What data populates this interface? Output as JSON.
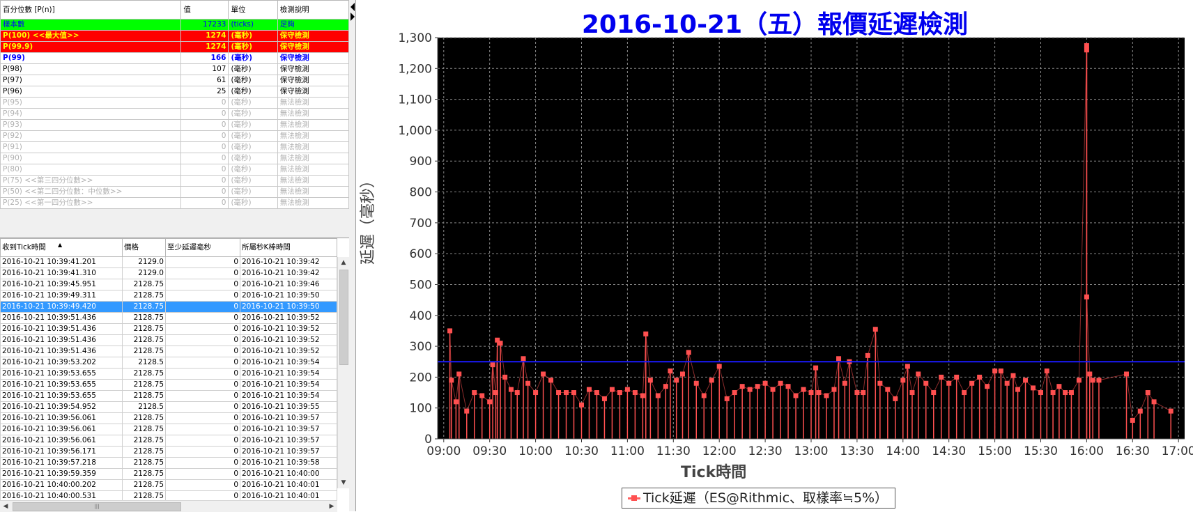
{
  "stats_table": {
    "headers": [
      "百分位數 [P(n)]",
      "值",
      "單位",
      "檢測說明"
    ],
    "rows": [
      {
        "label": "樣本數",
        "value": "17233",
        "unit": "(ticks)",
        "desc": "足夠",
        "style": "green"
      },
      {
        "label": "P(100)  <<最大值>>",
        "value": "1274",
        "unit": "(毫秒)",
        "desc": "保守檢測",
        "style": "red"
      },
      {
        "label": "P(99.9)",
        "value": "1274",
        "unit": "(毫秒)",
        "desc": "保守檢測",
        "style": "red"
      },
      {
        "label": "P(99)",
        "value": "166",
        "unit": "(毫秒)",
        "desc": "保守檢測",
        "style": "blue"
      },
      {
        "label": "P(98)",
        "value": "107",
        "unit": "(毫秒)",
        "desc": "保守檢測",
        "style": "normal"
      },
      {
        "label": "P(97)",
        "value": "61",
        "unit": "(毫秒)",
        "desc": "保守檢測",
        "style": "normal"
      },
      {
        "label": "P(96)",
        "value": "25",
        "unit": "(毫秒)",
        "desc": "保守檢測",
        "style": "normal"
      },
      {
        "label": "P(95)",
        "value": "0",
        "unit": "(毫秒)",
        "desc": "無法檢測",
        "style": "gray"
      },
      {
        "label": "P(94)",
        "value": "0",
        "unit": "(毫秒)",
        "desc": "無法檢測",
        "style": "gray"
      },
      {
        "label": "P(93)",
        "value": "0",
        "unit": "(毫秒)",
        "desc": "無法檢測",
        "style": "gray"
      },
      {
        "label": "P(92)",
        "value": "0",
        "unit": "(毫秒)",
        "desc": "無法檢測",
        "style": "gray"
      },
      {
        "label": "P(91)",
        "value": "0",
        "unit": "(毫秒)",
        "desc": "無法檢測",
        "style": "gray"
      },
      {
        "label": "P(90)",
        "value": "0",
        "unit": "(毫秒)",
        "desc": "無法檢測",
        "style": "gray"
      },
      {
        "label": "P(80)",
        "value": "0",
        "unit": "(毫秒)",
        "desc": "無法檢測",
        "style": "gray"
      },
      {
        "label": "P(75)  <<第三四分位數>>",
        "value": "0",
        "unit": "(毫秒)",
        "desc": "無法檢測",
        "style": "gray"
      },
      {
        "label": "P(50)  <<第二四分位數：中位數>>",
        "value": "0",
        "unit": "(毫秒)",
        "desc": "無法檢測",
        "style": "gray"
      },
      {
        "label": "P(25)  <<第一四分位數>>",
        "value": "0",
        "unit": "(毫秒)",
        "desc": "無法檢測",
        "style": "gray"
      }
    ]
  },
  "tick_table": {
    "headers": [
      "收到Tick時間",
      "價格",
      "至少延遲毫秒",
      "所屬秒K棒時間"
    ],
    "selected_index": 4,
    "rows": [
      [
        "2016-10-21 10:39:41.201",
        "2129.0",
        "0",
        "2016-10-21 10:39:42"
      ],
      [
        "2016-10-21 10:39:41.310",
        "2129.0",
        "0",
        "2016-10-21 10:39:42"
      ],
      [
        "2016-10-21 10:39:45.951",
        "2128.75",
        "0",
        "2016-10-21 10:39:46"
      ],
      [
        "2016-10-21 10:39:49.311",
        "2128.75",
        "0",
        "2016-10-21 10:39:50"
      ],
      [
        "2016-10-21 10:39:49.420",
        "2128.75",
        "0",
        "2016-10-21 10:39:50"
      ],
      [
        "2016-10-21 10:39:51.436",
        "2128.75",
        "0",
        "2016-10-21 10:39:52"
      ],
      [
        "2016-10-21 10:39:51.436",
        "2128.75",
        "0",
        "2016-10-21 10:39:52"
      ],
      [
        "2016-10-21 10:39:51.436",
        "2128.75",
        "0",
        "2016-10-21 10:39:52"
      ],
      [
        "2016-10-21 10:39:51.436",
        "2128.75",
        "0",
        "2016-10-21 10:39:52"
      ],
      [
        "2016-10-21 10:39:53.202",
        "2128.5",
        "0",
        "2016-10-21 10:39:54"
      ],
      [
        "2016-10-21 10:39:53.655",
        "2128.75",
        "0",
        "2016-10-21 10:39:54"
      ],
      [
        "2016-10-21 10:39:53.655",
        "2128.75",
        "0",
        "2016-10-21 10:39:54"
      ],
      [
        "2016-10-21 10:39:53.655",
        "2128.75",
        "0",
        "2016-10-21 10:39:54"
      ],
      [
        "2016-10-21 10:39:54.952",
        "2128.5",
        "0",
        "2016-10-21 10:39:55"
      ],
      [
        "2016-10-21 10:39:56.061",
        "2128.75",
        "0",
        "2016-10-21 10:39:57"
      ],
      [
        "2016-10-21 10:39:56.061",
        "2128.75",
        "0",
        "2016-10-21 10:39:57"
      ],
      [
        "2016-10-21 10:39:56.061",
        "2128.75",
        "0",
        "2016-10-21 10:39:57"
      ],
      [
        "2016-10-21 10:39:56.171",
        "2128.75",
        "0",
        "2016-10-21 10:39:57"
      ],
      [
        "2016-10-21 10:39:57.218",
        "2128.75",
        "0",
        "2016-10-21 10:39:58"
      ],
      [
        "2016-10-21 10:39:59.359",
        "2128.75",
        "0",
        "2016-10-21 10:40:00"
      ],
      [
        "2016-10-21 10:40:00.202",
        "2128.75",
        "0",
        "2016-10-21 10:40:01"
      ],
      [
        "2016-10-21 10:40:00.531",
        "2128.75",
        "0",
        "2016-10-21 10:40:01"
      ]
    ]
  },
  "colors": {
    "title": "#0000ee",
    "plot_bg": "#000000",
    "series": "#ff5050",
    "threshold": "#1a1aff",
    "selected_row": "#3399ff"
  },
  "chart_data": {
    "type": "line",
    "title": "2016-10-21（五）報價延遲檢測",
    "xlabel": "Tick時間",
    "ylabel": "延遲（毫秒）",
    "legend": "Tick延遲（ES@Rithmic、取樣率≒5%）",
    "legend_position": "bottom-center",
    "grid": true,
    "ylim": [
      0,
      1300
    ],
    "yticks": [
      "0",
      "100",
      "200",
      "300",
      "400",
      "500",
      "600",
      "700",
      "800",
      "900",
      "1,000",
      "1,100",
      "1,200",
      "1,300"
    ],
    "xlim": [
      "09:00",
      "17:00"
    ],
    "xticks": [
      "09:00",
      "09:30",
      "10:00",
      "10:30",
      "11:00",
      "11:30",
      "12:00",
      "12:30",
      "13:00",
      "13:30",
      "14:00",
      "14:30",
      "15:00",
      "15:30",
      "16:00",
      "16:30",
      "17:00"
    ],
    "threshold": 250,
    "series": [
      {
        "name": "Tick延遲（ES@Rithmic、取樣率≒5%）",
        "points": [
          [
            "09:04",
            350
          ],
          [
            "09:05",
            190
          ],
          [
            "09:08",
            120
          ],
          [
            "09:10",
            210
          ],
          [
            "09:15",
            90
          ],
          [
            "09:20",
            150
          ],
          [
            "09:25",
            140
          ],
          [
            "09:30",
            120
          ],
          [
            "09:32",
            240
          ],
          [
            "09:34",
            150
          ],
          [
            "09:35",
            320
          ],
          [
            "09:37",
            310
          ],
          [
            "09:40",
            200
          ],
          [
            "09:44",
            160
          ],
          [
            "09:48",
            150
          ],
          [
            "09:52",
            260
          ],
          [
            "09:55",
            180
          ],
          [
            "10:00",
            150
          ],
          [
            "10:05",
            210
          ],
          [
            "10:10",
            190
          ],
          [
            "10:15",
            150
          ],
          [
            "10:20",
            150
          ],
          [
            "10:25",
            150
          ],
          [
            "10:30",
            110
          ],
          [
            "10:35",
            160
          ],
          [
            "10:40",
            150
          ],
          [
            "10:45",
            130
          ],
          [
            "10:50",
            160
          ],
          [
            "10:55",
            150
          ],
          [
            "11:00",
            160
          ],
          [
            "11:05",
            150
          ],
          [
            "11:10",
            140
          ],
          [
            "11:12",
            340
          ],
          [
            "11:15",
            190
          ],
          [
            "11:20",
            140
          ],
          [
            "11:25",
            170
          ],
          [
            "11:28",
            220
          ],
          [
            "11:32",
            190
          ],
          [
            "11:36",
            210
          ],
          [
            "11:40",
            280
          ],
          [
            "11:45",
            180
          ],
          [
            "11:50",
            140
          ],
          [
            "11:55",
            190
          ],
          [
            "12:00",
            235
          ],
          [
            "12:05",
            130
          ],
          [
            "12:10",
            150
          ],
          [
            "12:15",
            170
          ],
          [
            "12:20",
            160
          ],
          [
            "12:25",
            170
          ],
          [
            "12:30",
            180
          ],
          [
            "12:35",
            160
          ],
          [
            "12:40",
            180
          ],
          [
            "12:45",
            170
          ],
          [
            "12:50",
            140
          ],
          [
            "12:55",
            160
          ],
          [
            "13:00",
            150
          ],
          [
            "13:03",
            230
          ],
          [
            "13:05",
            150
          ],
          [
            "13:10",
            140
          ],
          [
            "13:15",
            160
          ],
          [
            "13:18",
            260
          ],
          [
            "13:22",
            180
          ],
          [
            "13:25",
            250
          ],
          [
            "13:30",
            150
          ],
          [
            "13:34",
            150
          ],
          [
            "13:37",
            270
          ],
          [
            "13:42",
            355
          ],
          [
            "13:45",
            180
          ],
          [
            "13:50",
            160
          ],
          [
            "13:55",
            130
          ],
          [
            "14:00",
            190
          ],
          [
            "14:03",
            235
          ],
          [
            "14:06",
            150
          ],
          [
            "14:10",
            210
          ],
          [
            "14:15",
            180
          ],
          [
            "14:20",
            150
          ],
          [
            "14:25",
            200
          ],
          [
            "14:30",
            180
          ],
          [
            "14:35",
            200
          ],
          [
            "14:40",
            150
          ],
          [
            "14:45",
            180
          ],
          [
            "14:50",
            200
          ],
          [
            "14:55",
            170
          ],
          [
            "15:00",
            220
          ],
          [
            "15:04",
            220
          ],
          [
            "15:08",
            180
          ],
          [
            "15:12",
            205
          ],
          [
            "15:15",
            160
          ],
          [
            "15:20",
            190
          ],
          [
            "15:25",
            165
          ],
          [
            "15:30",
            150
          ],
          [
            "15:34",
            220
          ],
          [
            "15:38",
            150
          ],
          [
            "15:42",
            170
          ],
          [
            "15:46",
            150
          ],
          [
            "15:50",
            150
          ],
          [
            "15:55",
            190
          ],
          [
            "16:00",
            1274
          ],
          [
            "16:00",
            1260
          ],
          [
            "16:00",
            460
          ],
          [
            "16:02",
            210
          ],
          [
            "16:04",
            190
          ],
          [
            "16:08",
            190
          ],
          [
            "16:26",
            210
          ],
          [
            "16:30",
            60
          ],
          [
            "16:35",
            90
          ],
          [
            "16:40",
            150
          ],
          [
            "16:44",
            120
          ],
          [
            "16:55",
            90
          ]
        ]
      }
    ]
  }
}
